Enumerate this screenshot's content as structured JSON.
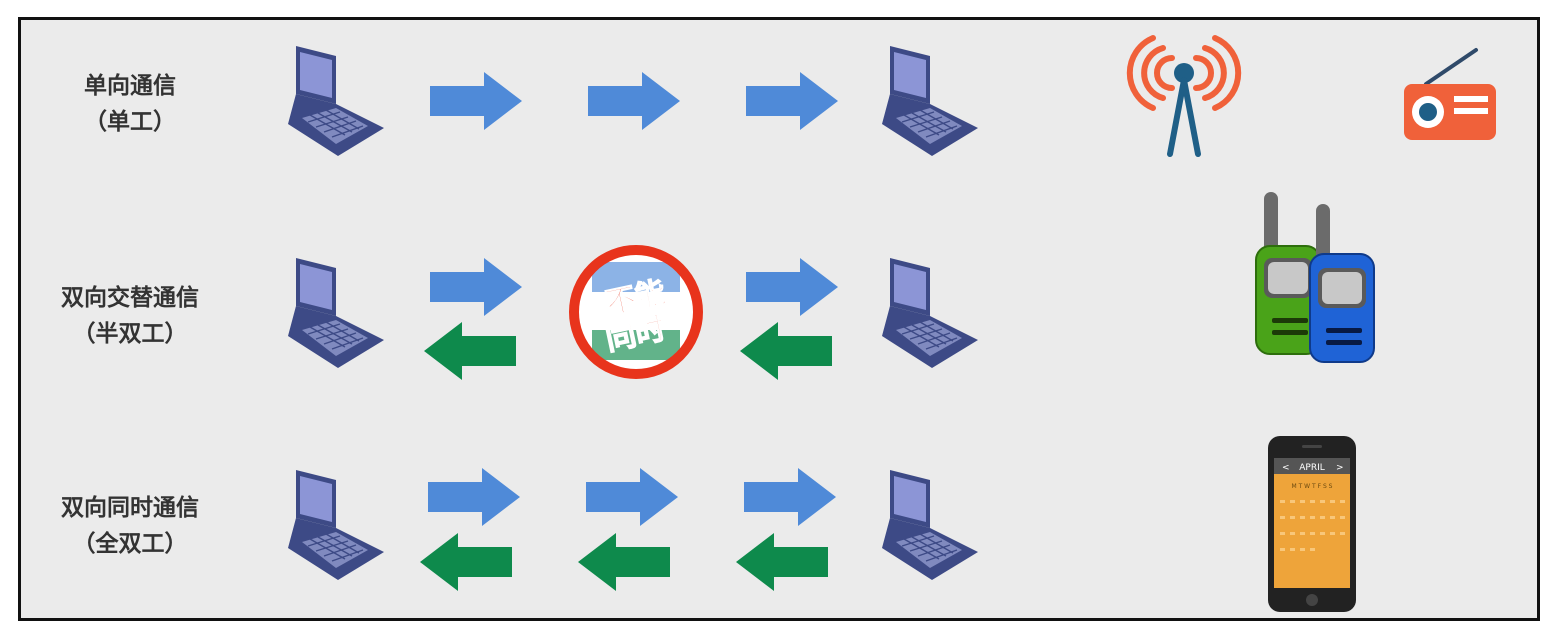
{
  "rows": [
    {
      "label_line1": "单向通信",
      "label_line2": "（单工）"
    },
    {
      "label_line1": "双向交替通信",
      "label_line2": "（半双工）"
    },
    {
      "label_line1": "双向同时通信",
      "label_line2": "（全双工）"
    }
  ],
  "forbidden_badge": {
    "line1": "不能",
    "line2": "同时",
    "color": "#e8341c"
  },
  "phone": {
    "month": "APRIL",
    "prev": "<",
    "next": ">",
    "weekdays": "M T W T F S S"
  },
  "colors": {
    "right_arrow": "#4f8ad8",
    "left_arrow": "#0e8a4c",
    "laptop": "#3d4a86",
    "screen": "#8c95d6",
    "antenna_waves": "#f0613a",
    "antenna_mast": "#1f5f87",
    "radio": "#f0613a",
    "walkie_green": "#4aa319",
    "walkie_blue": "#1f63d6",
    "phone_screen": "#eea43a"
  },
  "icons": [
    "laptop-icon",
    "right-arrow-icon",
    "left-arrow-icon",
    "no-entry-icon",
    "radio-tower-icon",
    "radio-icon",
    "walkie-talkie-icon",
    "smartphone-icon"
  ]
}
